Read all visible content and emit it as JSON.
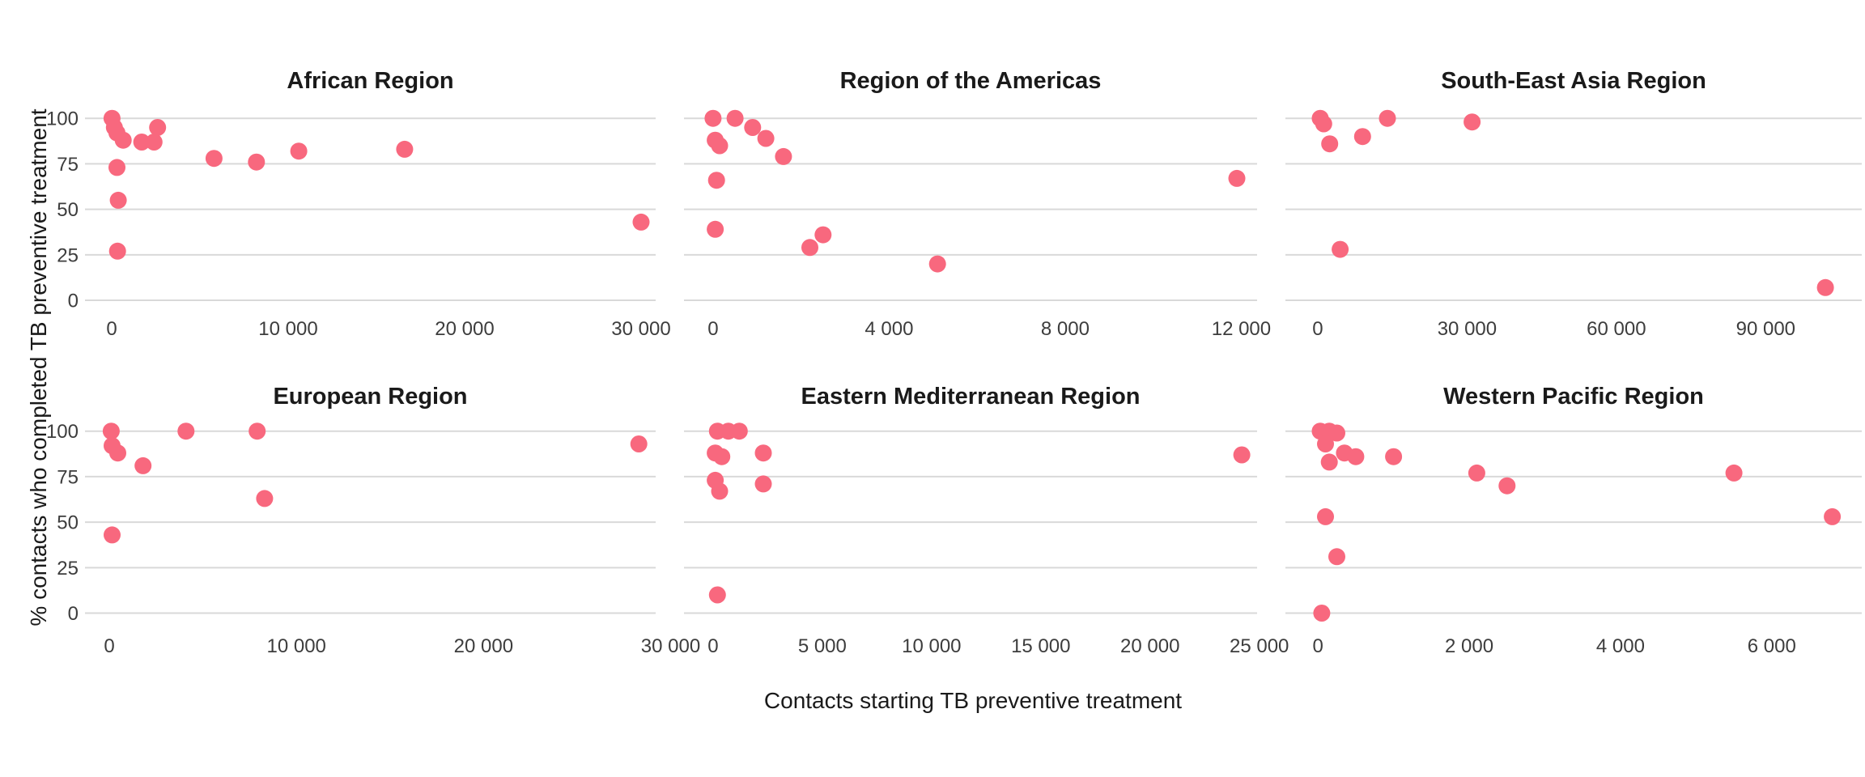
{
  "figure": {
    "x_axis_title": "Contacts starting TB preventive treatment",
    "y_axis_title": "% contacts who completed TB preventive treatment",
    "colors": {
      "point": "#F8687E",
      "gridline": "#D9D9D9",
      "panel_title": "#1A1A1A",
      "tick_label": "#3D3D3D",
      "axis_title": "#1A1A1A",
      "background": "#FFFFFF"
    },
    "y_ticks": [
      0,
      25,
      50,
      75,
      100
    ],
    "y_domain": [
      -6,
      107
    ],
    "grid": "horizontal-only",
    "legend": "none"
  },
  "chart_data": [
    {
      "type": "scatter",
      "title": "African Region",
      "row": 0,
      "col": 0,
      "x_ticks": [
        0,
        10000,
        20000,
        30000
      ],
      "x_domain": [
        -1514,
        30826
      ],
      "xlabel": "Contacts starting TB preventive treatment",
      "ylabel": "% contacts who completed TB preventive treatment",
      "points": [
        [
          20,
          100
        ],
        [
          150,
          95
        ],
        [
          300,
          92
        ],
        [
          650,
          88
        ],
        [
          1700,
          87
        ],
        [
          2400,
          87
        ],
        [
          2600,
          95
        ],
        [
          300,
          73
        ],
        [
          370,
          55
        ],
        [
          330,
          27
        ],
        [
          5800,
          78
        ],
        [
          8200,
          76
        ],
        [
          10600,
          82
        ],
        [
          16600,
          83
        ],
        [
          30000,
          43
        ]
      ]
    },
    {
      "type": "scatter",
      "title": "Region of the Americas",
      "row": 0,
      "col": 1,
      "x_ticks": [
        0,
        4000,
        8000,
        12000
      ],
      "x_domain": [
        -660,
        12360
      ],
      "points": [
        [
          0,
          100
        ],
        [
          500,
          100
        ],
        [
          900,
          95
        ],
        [
          1200,
          89
        ],
        [
          50,
          88
        ],
        [
          150,
          85
        ],
        [
          1600,
          79
        ],
        [
          80,
          66
        ],
        [
          11900,
          67
        ],
        [
          50,
          39
        ],
        [
          2200,
          29
        ],
        [
          2500,
          36
        ],
        [
          5100,
          20
        ]
      ]
    },
    {
      "type": "scatter",
      "title": "South-East Asia Region",
      "row": 0,
      "col": 2,
      "x_ticks": [
        0,
        30000,
        60000,
        90000
      ],
      "x_domain": [
        -6500,
        109300
      ],
      "points": [
        [
          500,
          100
        ],
        [
          1200,
          97
        ],
        [
          2400,
          86
        ],
        [
          9000,
          90
        ],
        [
          14000,
          100
        ],
        [
          31000,
          98
        ],
        [
          4500,
          28
        ],
        [
          102000,
          7
        ]
      ]
    },
    {
      "type": "scatter",
      "title": "European Region",
      "row": 1,
      "col": 0,
      "x_ticks": [
        0,
        10000,
        20000,
        30000
      ],
      "x_domain": [
        -1300,
        29200
      ],
      "points": [
        [
          100,
          100
        ],
        [
          150,
          92
        ],
        [
          450,
          88
        ],
        [
          1800,
          81
        ],
        [
          4100,
          100
        ],
        [
          7900,
          100
        ],
        [
          8300,
          63
        ],
        [
          150,
          43
        ],
        [
          28300,
          93
        ]
      ]
    },
    {
      "type": "scatter",
      "title": "Eastern Mediterranean Region",
      "row": 1,
      "col": 1,
      "x_ticks": [
        0,
        5000,
        10000,
        15000,
        20000,
        25000
      ],
      "x_domain": [
        -1330,
        24900
      ],
      "points": [
        [
          200,
          100
        ],
        [
          700,
          100
        ],
        [
          1200,
          100
        ],
        [
          100,
          88
        ],
        [
          400,
          86
        ],
        [
          2300,
          88
        ],
        [
          100,
          73
        ],
        [
          300,
          67
        ],
        [
          2300,
          71
        ],
        [
          200,
          10
        ],
        [
          24200,
          87
        ]
      ]
    },
    {
      "type": "scatter",
      "title": "Western Pacific Region",
      "row": 1,
      "col": 2,
      "x_ticks": [
        0,
        2000,
        4000,
        6000
      ],
      "x_domain": [
        -430,
        7190
      ],
      "points": [
        [
          30,
          100
        ],
        [
          150,
          100
        ],
        [
          250,
          99
        ],
        [
          100,
          93
        ],
        [
          150,
          83
        ],
        [
          350,
          88
        ],
        [
          500,
          86
        ],
        [
          1000,
          86
        ],
        [
          2100,
          77
        ],
        [
          2500,
          70
        ],
        [
          5500,
          77
        ],
        [
          100,
          53
        ],
        [
          250,
          31
        ],
        [
          50,
          0
        ],
        [
          6800,
          53
        ]
      ]
    }
  ]
}
